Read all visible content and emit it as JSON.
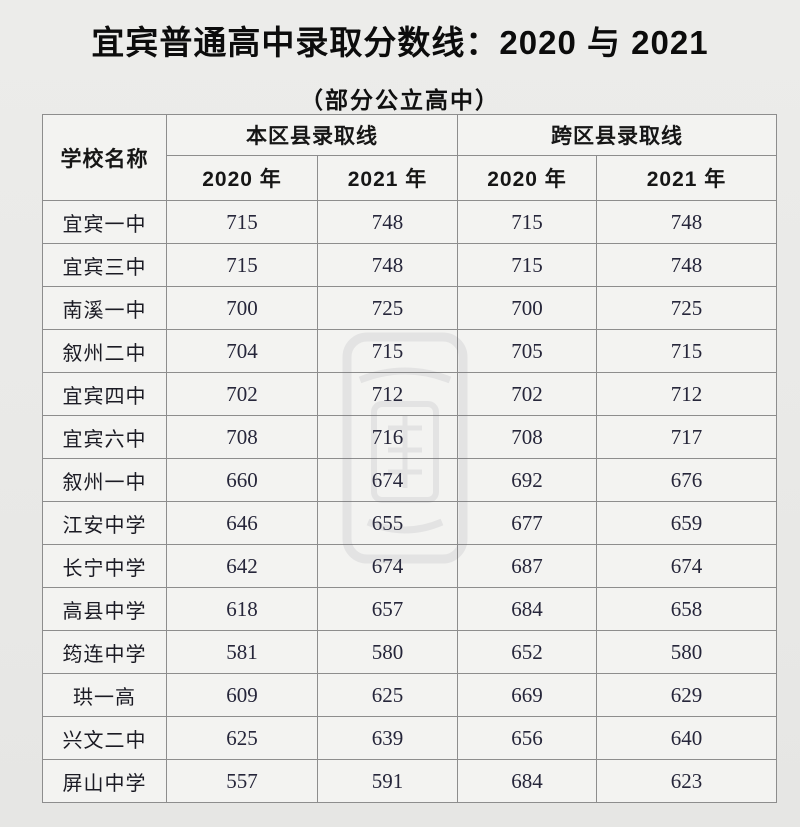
{
  "page": {
    "title": "宜宾普通高中录取分数线：2020 与 2021",
    "subtitle": "（部分公立高中）"
  },
  "table": {
    "header": {
      "school": "学校名称",
      "local_group": "本区县录取线",
      "cross_group": "跨区县录取线",
      "year_2020": "2020 年",
      "year_2021": "2021 年"
    },
    "rows": [
      {
        "school": "宜宾一中",
        "local_2020": "715",
        "local_2021": "748",
        "cross_2020": "715",
        "cross_2021": "748"
      },
      {
        "school": "宜宾三中",
        "local_2020": "715",
        "local_2021": "748",
        "cross_2020": "715",
        "cross_2021": "748"
      },
      {
        "school": "南溪一中",
        "local_2020": "700",
        "local_2021": "725",
        "cross_2020": "700",
        "cross_2021": "725"
      },
      {
        "school": "叙州二中",
        "local_2020": "704",
        "local_2021": "715",
        "cross_2020": "705",
        "cross_2021": "715"
      },
      {
        "school": "宜宾四中",
        "local_2020": "702",
        "local_2021": "712",
        "cross_2020": "702",
        "cross_2021": "712"
      },
      {
        "school": "宜宾六中",
        "local_2020": "708",
        "local_2021": "716",
        "cross_2020": "708",
        "cross_2021": "717"
      },
      {
        "school": "叙州一中",
        "local_2020": "660",
        "local_2021": "674",
        "cross_2020": "692",
        "cross_2021": "676"
      },
      {
        "school": "江安中学",
        "local_2020": "646",
        "local_2021": "655",
        "cross_2020": "677",
        "cross_2021": "659"
      },
      {
        "school": "长宁中学",
        "local_2020": "642",
        "local_2021": "674",
        "cross_2020": "687",
        "cross_2021": "674"
      },
      {
        "school": "高县中学",
        "local_2020": "618",
        "local_2021": "657",
        "cross_2020": "684",
        "cross_2021": "658"
      },
      {
        "school": "筠连中学",
        "local_2020": "581",
        "local_2021": "580",
        "cross_2020": "652",
        "cross_2021": "580"
      },
      {
        "school": "珙一高",
        "local_2020": "609",
        "local_2021": "625",
        "cross_2020": "669",
        "cross_2021": "629"
      },
      {
        "school": "兴文二中",
        "local_2020": "625",
        "local_2021": "639",
        "cross_2020": "656",
        "cross_2021": "640"
      },
      {
        "school": "屏山中学",
        "local_2020": "557",
        "local_2021": "591",
        "cross_2020": "684",
        "cross_2021": "623"
      }
    ]
  },
  "watermark": {
    "name": "faint-seal-stamp"
  },
  "colors": {
    "page_background": "#e9e9e7",
    "cell_background": "#f3f3f1",
    "border": "#8d8d8d",
    "title_text": "#0c0c0c",
    "school_text": "#1b1b24",
    "score_text": "#26263a",
    "watermark": "#6b6b7a"
  },
  "chart_data": {
    "type": "table",
    "title": "宜宾普通高中录取分数线：2020 与 2021",
    "subtitle": "（部分公立高中）",
    "column_groups": [
      "学校名称",
      "本区县录取线",
      "跨区县录取线"
    ],
    "columns": [
      "学校名称",
      "本区县录取线 2020 年",
      "本区县录取线 2021 年",
      "跨区县录取线 2020 年",
      "跨区县录取线 2021 年"
    ],
    "rows": [
      [
        "宜宾一中",
        715,
        748,
        715,
        748
      ],
      [
        "宜宾三中",
        715,
        748,
        715,
        748
      ],
      [
        "南溪一中",
        700,
        725,
        700,
        725
      ],
      [
        "叙州二中",
        704,
        715,
        705,
        715
      ],
      [
        "宜宾四中",
        702,
        712,
        702,
        712
      ],
      [
        "宜宾六中",
        708,
        716,
        708,
        717
      ],
      [
        "叙州一中",
        660,
        674,
        692,
        676
      ],
      [
        "江安中学",
        646,
        655,
        677,
        659
      ],
      [
        "长宁中学",
        642,
        674,
        687,
        674
      ],
      [
        "高县中学",
        618,
        657,
        684,
        658
      ],
      [
        "筠连中学",
        581,
        580,
        652,
        580
      ],
      [
        "珙一高",
        609,
        625,
        669,
        629
      ],
      [
        "兴文二中",
        625,
        639,
        656,
        640
      ],
      [
        "屏山中学",
        557,
        591,
        684,
        623
      ]
    ]
  }
}
